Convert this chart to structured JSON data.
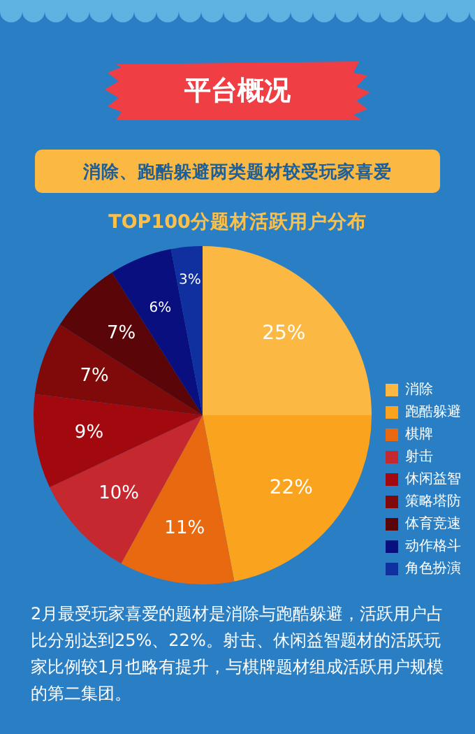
{
  "chart_data": {
    "type": "pie",
    "title": "TOP100分题材活跃用户分布",
    "subtitle": "消除、跑酷躲避两类题材较受玩家喜爱",
    "annotations": [
      "平台概况",
      "2月最受玩家喜爱的题材是消除与跑酷躲避，活跃用户占比分别达到25%、22%。射击、休闲益智题材的活跃玩家比例较1月也略有提升，与棋牌题材组成活跃用户规模的第二集团。"
    ],
    "categories": [
      "消除",
      "跑酷躲避",
      "棋牌",
      "射击",
      "休闲益智",
      "策略塔防",
      "体育竞速",
      "动作格斗",
      "角色扮演"
    ],
    "values": [
      25,
      22,
      11,
      10,
      9,
      7,
      7,
      6,
      3
    ],
    "value_labels": [
      "25%",
      "22%",
      "11%",
      "10%",
      "9%",
      "7%",
      "7%",
      "6%",
      "3%"
    ],
    "colors": [
      "#fbb843",
      "#f9a31e",
      "#e8690f",
      "#c5282f",
      "#a1090f",
      "#800a0a",
      "#5a0608",
      "#0a0f80",
      "#1030a0"
    ],
    "legend": "right"
  }
}
